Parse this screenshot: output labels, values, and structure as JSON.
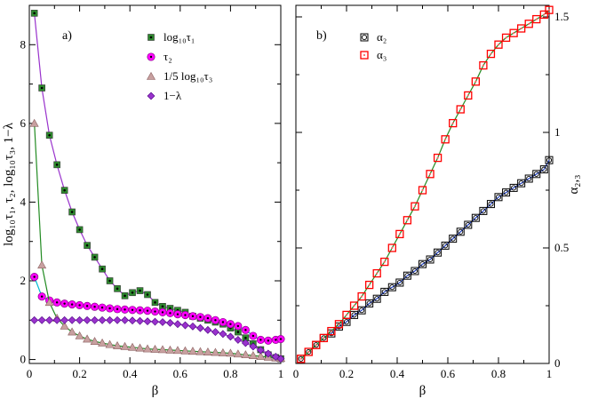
{
  "chart_data": [
    {
      "type": "scatter",
      "panel_label": "a)",
      "xlabel": "β",
      "ylabel": "log₁₀τ₁, τ₂, log₁₀τ₃, 1−λ",
      "xlim": [
        0,
        1
      ],
      "ylim": [
        -0.1,
        9.0
      ],
      "xticks": [
        "0",
        "0.2",
        "0.4",
        "0.6",
        "0.8",
        "1"
      ],
      "yticks": [
        "0",
        "2",
        "4",
        "6",
        "8"
      ],
      "legend_position": "top-right",
      "legend": [
        "log₁₀τ₁",
        "τ₂",
        "1/5 log₁₀τ₃",
        "1−λ"
      ],
      "x": [
        0.02,
        0.05,
        0.08,
        0.11,
        0.14,
        0.17,
        0.2,
        0.23,
        0.26,
        0.29,
        0.32,
        0.35,
        0.38,
        0.41,
        0.44,
        0.47,
        0.5,
        0.53,
        0.56,
        0.59,
        0.62,
        0.65,
        0.68,
        0.71,
        0.74,
        0.77,
        0.8,
        0.83,
        0.86,
        0.89,
        0.92,
        0.95,
        0.98,
        1.0
      ],
      "series": [
        {
          "name": "log₁₀τ₁",
          "marker": "square-dot",
          "color": "#2e8b2e",
          "curve_color": "#9932cc",
          "values": [
            8.8,
            6.9,
            5.7,
            4.95,
            4.3,
            3.75,
            3.3,
            2.9,
            2.6,
            2.3,
            2.0,
            1.8,
            1.62,
            1.7,
            1.75,
            1.65,
            1.45,
            1.35,
            1.3,
            1.25,
            1.2,
            1.1,
            1.05,
            1.0,
            0.95,
            0.9,
            0.8,
            0.7,
            0.55,
            0.4,
            0.25,
            0.12,
            0.05,
            0.02
          ]
        },
        {
          "name": "τ₂",
          "marker": "circle",
          "color": "#ff00ff",
          "curve_color": "#00bcd4",
          "values": [
            2.1,
            1.6,
            1.5,
            1.45,
            1.42,
            1.4,
            1.38,
            1.36,
            1.34,
            1.32,
            1.3,
            1.28,
            1.27,
            1.26,
            1.25,
            1.24,
            1.22,
            1.2,
            1.18,
            1.15,
            1.13,
            1.1,
            1.08,
            1.05,
            1.0,
            0.95,
            0.9,
            0.85,
            0.75,
            0.6,
            0.5,
            0.48,
            0.5,
            0.52
          ]
        },
        {
          "name": "1/5 log₁₀τ₃",
          "marker": "triangle",
          "color": "#c8a0a0",
          "curve_color": "#228b22",
          "values": [
            6.0,
            2.4,
            1.45,
            1.05,
            0.85,
            0.7,
            0.6,
            0.52,
            0.46,
            0.42,
            0.38,
            0.35,
            0.33,
            0.31,
            0.29,
            0.27,
            0.26,
            0.25,
            0.24,
            0.23,
            0.22,
            0.21,
            0.2,
            0.19,
            0.18,
            0.17,
            0.16,
            0.14,
            0.12,
            0.1,
            0.08,
            0.06,
            0.04,
            0.03
          ]
        },
        {
          "name": "1−λ",
          "marker": "diamond",
          "color": "#9932cc",
          "curve_color": "#9932cc",
          "values": [
            1.0,
            1.0,
            1.0,
            1.0,
            1.0,
            1.0,
            1.0,
            1.0,
            1.0,
            1.0,
            1.0,
            1.0,
            1.0,
            0.99,
            0.98,
            0.97,
            0.96,
            0.95,
            0.93,
            0.9,
            0.87,
            0.84,
            0.8,
            0.75,
            0.7,
            0.65,
            0.58,
            0.5,
            0.42,
            0.33,
            0.24,
            0.15,
            0.07,
            0.02
          ]
        }
      ]
    },
    {
      "type": "scatter",
      "panel_label": "b)",
      "xlabel": "β",
      "ylabel": "α₂,₃",
      "xlim": [
        0,
        1
      ],
      "ylim": [
        0,
        1.55
      ],
      "xticks": [
        "0",
        "0.2",
        "0.4",
        "0.6",
        "0.8",
        "1"
      ],
      "yticks": [
        "0",
        "0.5",
        "1",
        "1.5"
      ],
      "legend_position": "top-left",
      "legend": [
        "α₂",
        "α₃"
      ],
      "x": [
        0.02,
        0.05,
        0.08,
        0.11,
        0.14,
        0.17,
        0.2,
        0.23,
        0.26,
        0.29,
        0.32,
        0.35,
        0.38,
        0.41,
        0.44,
        0.47,
        0.5,
        0.53,
        0.56,
        0.59,
        0.62,
        0.65,
        0.68,
        0.71,
        0.74,
        0.77,
        0.8,
        0.83,
        0.86,
        0.89,
        0.92,
        0.95,
        0.98,
        1.0
      ],
      "series": [
        {
          "name": "α₂",
          "marker": "square-circle",
          "color": "#000000",
          "curve_color": "#1f3fbf",
          "values": [
            0.02,
            0.05,
            0.08,
            0.11,
            0.13,
            0.16,
            0.18,
            0.21,
            0.23,
            0.26,
            0.28,
            0.31,
            0.33,
            0.35,
            0.38,
            0.4,
            0.43,
            0.45,
            0.48,
            0.51,
            0.54,
            0.57,
            0.6,
            0.63,
            0.66,
            0.69,
            0.72,
            0.74,
            0.76,
            0.78,
            0.8,
            0.82,
            0.84,
            0.88
          ]
        },
        {
          "name": "α₃",
          "marker": "square-red",
          "color": "#ff0000",
          "curve_color": "#228b22",
          "values": [
            0.02,
            0.05,
            0.08,
            0.11,
            0.14,
            0.17,
            0.21,
            0.25,
            0.29,
            0.34,
            0.39,
            0.44,
            0.5,
            0.56,
            0.62,
            0.68,
            0.75,
            0.82,
            0.89,
            0.97,
            1.04,
            1.1,
            1.16,
            1.22,
            1.29,
            1.34,
            1.38,
            1.41,
            1.43,
            1.45,
            1.47,
            1.49,
            1.51,
            1.53
          ]
        }
      ]
    }
  ]
}
